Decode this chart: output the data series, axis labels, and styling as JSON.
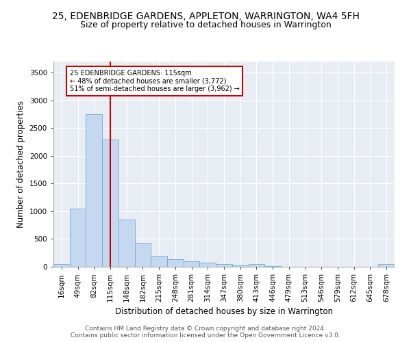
{
  "title1": "25, EDENBRIDGE GARDENS, APPLETON, WARRINGTON, WA4 5FH",
  "title2": "Size of property relative to detached houses in Warrington",
  "xlabel": "Distribution of detached houses by size in Warrington",
  "ylabel": "Number of detached properties",
  "categories": [
    "16sqm",
    "49sqm",
    "82sqm",
    "115sqm",
    "148sqm",
    "182sqm",
    "215sqm",
    "248sqm",
    "281sqm",
    "314sqm",
    "347sqm",
    "380sqm",
    "413sqm",
    "446sqm",
    "479sqm",
    "513sqm",
    "546sqm",
    "579sqm",
    "612sqm",
    "645sqm",
    "678sqm"
  ],
  "values": [
    50,
    1050,
    2750,
    2300,
    850,
    430,
    200,
    130,
    100,
    80,
    50,
    25,
    50,
    15,
    5,
    3,
    2,
    1,
    0,
    0,
    50
  ],
  "bar_color": "#c5d8ef",
  "bar_edge_color": "#6aacd4",
  "vline_index": 3,
  "vline_color": "#cc0000",
  "annotation_text": "25 EDENBRIDGE GARDENS: 115sqm\n← 48% of detached houses are smaller (3,772)\n51% of semi-detached houses are larger (3,962) →",
  "annotation_box_color": "white",
  "annotation_box_edge_color": "#cc0000",
  "ylim": [
    0,
    3700
  ],
  "yticks": [
    0,
    500,
    1000,
    1500,
    2000,
    2500,
    3000,
    3500
  ],
  "plot_bg_color": "#e8edf3",
  "footer1": "Contains HM Land Registry data © Crown copyright and database right 2024.",
  "footer2": "Contains public sector information licensed under the Open Government Licence v3.0.",
  "title1_fontsize": 10,
  "title2_fontsize": 9,
  "xlabel_fontsize": 8.5,
  "ylabel_fontsize": 8.5,
  "tick_fontsize": 7.5,
  "footer_fontsize": 6.5
}
